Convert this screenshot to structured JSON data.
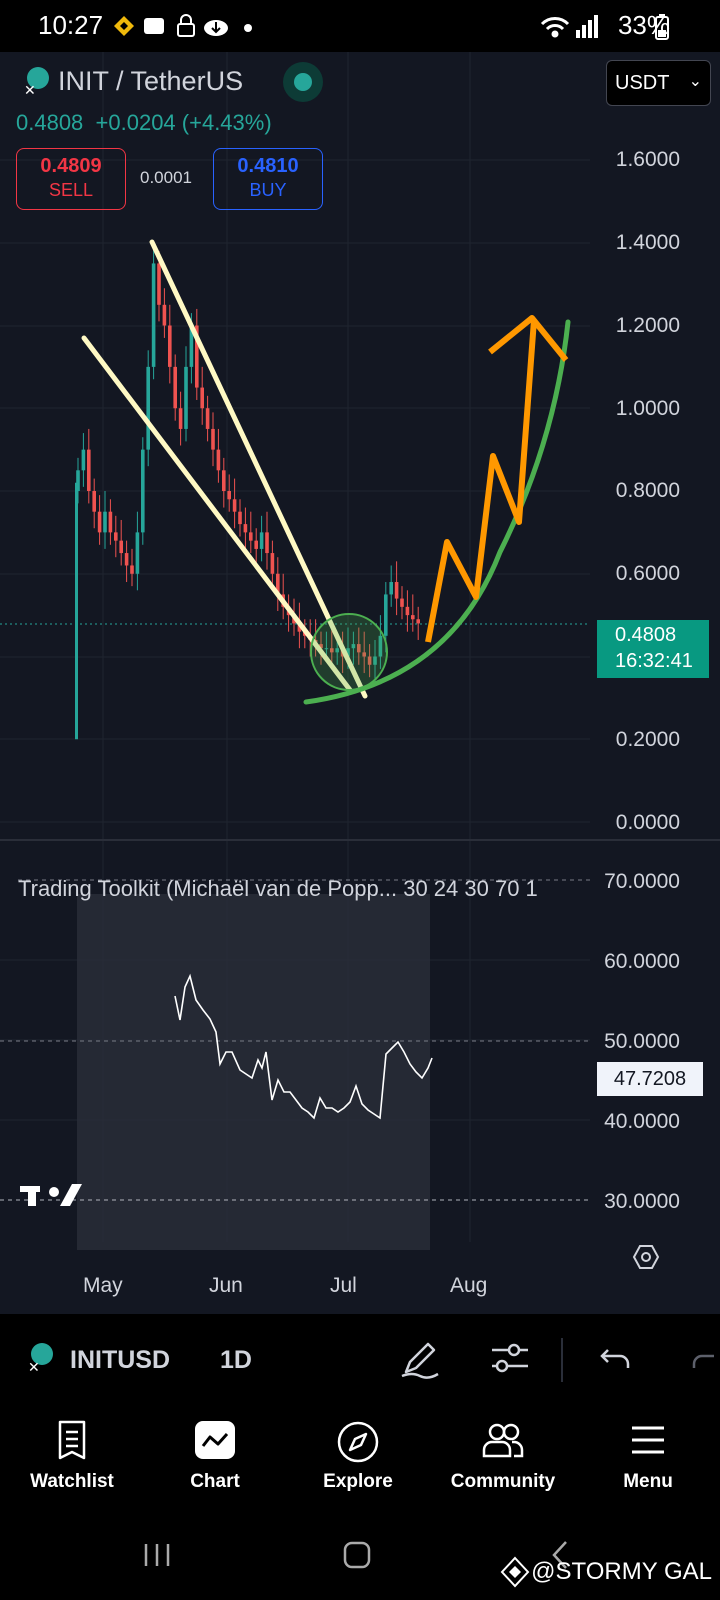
{
  "status_bar": {
    "time": "10:27",
    "battery": "33%",
    "icons": [
      "binance-icon",
      "cloud-app-icon",
      "lock-icon",
      "download-icon",
      "dot-icon",
      "wifi-icon",
      "signal-icon",
      "battery-icon"
    ]
  },
  "header": {
    "symbol_title": "INIT / TetherUS",
    "last_price": "0.4808",
    "change": "+0.0204 (+4.43%)",
    "live_indicator_color": "#26a69a",
    "currency_select": "USDT",
    "sell": {
      "price": "0.4809",
      "label": "SELL"
    },
    "spread": "0.0001",
    "buy": {
      "price": "0.4810",
      "label": "BUY"
    }
  },
  "chart": {
    "price_axis": [
      "1.6000",
      "1.4000",
      "1.2000",
      "1.0000",
      "0.8000",
      "0.6000",
      "0.2000",
      "0.0000"
    ],
    "price_tag": {
      "price": "0.4808",
      "countdown": "16:32:41"
    },
    "time_axis": [
      "May",
      "Jun",
      "Jul",
      "Aug"
    ],
    "colors": {
      "up": "#26a69a",
      "down": "#ef5350",
      "wedge": "#fff9c4",
      "curve": "#4caf50",
      "arrow": "#ff9800"
    }
  },
  "indicator": {
    "title": "Trading Toolkit (Michaël van de Popp... 30 24 30 70 1",
    "axis": [
      "70.0000",
      "60.0000",
      "50.0000",
      "40.0000",
      "30.0000"
    ],
    "current_value": "47.7208"
  },
  "toolbar": {
    "symbol": "INITUSD",
    "interval": "1D",
    "tools": [
      "pencil-icon",
      "sliders-icon",
      "undo-icon",
      "redo-icon"
    ]
  },
  "bottom_nav": [
    {
      "label": "Watchlist"
    },
    {
      "label": "Chart"
    },
    {
      "label": "Explore"
    },
    {
      "label": "Community"
    },
    {
      "label": "Menu"
    }
  ],
  "watermark": "@STORMY GAL"
}
